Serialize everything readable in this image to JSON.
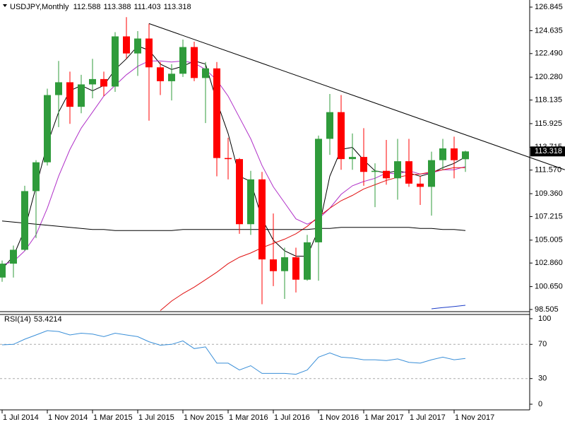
{
  "chart_data": [
    {
      "type": "candlestick",
      "title": "USDJPY,Monthly",
      "categories": [
        "1 Jul 2014",
        null,
        null,
        null,
        "1 Nov 2014",
        null,
        null,
        null,
        "1 Mar 2015",
        null,
        null,
        null,
        "1 Jul 2015",
        null,
        null,
        null,
        "1 Nov 2015",
        null,
        null,
        null,
        "1 Mar 2016",
        null,
        null,
        null,
        "1 Jul 2016",
        null,
        null,
        null,
        "1 Nov 2016",
        null,
        null,
        null,
        "1 Mar 2017",
        null,
        null,
        null,
        "1 Jul 2017",
        null,
        null,
        null,
        "1 Nov 2017",
        null
      ],
      "open": [
        101.5,
        102.8,
        104.1,
        109.6,
        112.3,
        118.6,
        119.8,
        117.5,
        119.6,
        120.1,
        119.4,
        124.1,
        122.5,
        123.9,
        121.2,
        119.9,
        120.6,
        123.1,
        120.2,
        121.1,
        112.7,
        112.6,
        106.5,
        110.7,
        103.2,
        102.1,
        103.4,
        101.3,
        104.8,
        114.5,
        117.0,
        112.6,
        112.8,
        111.4,
        111.5,
        110.8,
        112.4,
        110.3,
        110.0,
        112.5,
        113.6,
        112.588
      ],
      "high": [
        103.1,
        104.5,
        110.1,
        112.5,
        119.2,
        121.8,
        120.8,
        120.5,
        122.0,
        120.8,
        124.5,
        125.9,
        124.6,
        125.3,
        121.7,
        121.5,
        123.8,
        123.6,
        121.7,
        121.7,
        114.6,
        112.7,
        111.5,
        111.4,
        107.5,
        104.3,
        104.3,
        105.5,
        114.8,
        118.7,
        118.6,
        115.0,
        115.5,
        112.2,
        114.4,
        114.5,
        114.5,
        111.0,
        113.3,
        114.5,
        114.7,
        113.388
      ],
      "low": [
        101.1,
        101.5,
        104.0,
        105.2,
        112.0,
        115.6,
        115.9,
        116.9,
        118.3,
        118.5,
        118.9,
        122.0,
        120.4,
        116.2,
        118.6,
        118.1,
        120.3,
        119.9,
        115.98,
        110.99,
        110.7,
        105.6,
        105.5,
        99.0,
        100.7,
        99.5,
        100.1,
        101.2,
        101.2,
        113.0,
        111.6,
        111.6,
        110.1,
        108.1,
        110.2,
        108.8,
        110.0,
        108.3,
        107.3,
        111.6,
        110.8,
        111.403
      ],
      "close": [
        102.8,
        104.1,
        109.6,
        112.3,
        118.6,
        119.8,
        117.5,
        119.6,
        120.1,
        119.4,
        124.1,
        122.5,
        123.9,
        121.2,
        119.9,
        120.6,
        123.1,
        120.2,
        121.1,
        112.7,
        112.6,
        106.5,
        110.7,
        103.2,
        102.1,
        103.4,
        101.3,
        104.8,
        114.5,
        117.0,
        112.6,
        112.8,
        111.4,
        111.5,
        110.8,
        112.4,
        110.3,
        110.0,
        112.5,
        113.6,
        112.5,
        113.318
      ],
      "up_color": "#2f9b3b",
      "down_color": "#ff0000",
      "indicators": [
        {
          "color": "#000000",
          "values": [
            102.3,
            103.5,
            106,
            110,
            114,
            117,
            119,
            119.5,
            119,
            119.5,
            121,
            122,
            123.2,
            122.8,
            121.5,
            121,
            121.3,
            121.8,
            121.5,
            118,
            115,
            111,
            110.5,
            107,
            105,
            104,
            103.5,
            103.5,
            106,
            111,
            113.5,
            113.7,
            112.5,
            111.5,
            111.3,
            111.5,
            111.3,
            111,
            111.3,
            111.8,
            112.2,
            112.8
          ]
        },
        {
          "color": "#b030c8",
          "values": [
            102.7,
            103,
            104,
            105.5,
            108,
            111,
            113.5,
            115.5,
            117,
            118.5,
            119.5,
            120.5,
            121.3,
            121.8,
            121.8,
            121.7,
            121.8,
            121.6,
            121,
            120,
            118.5,
            116.5,
            114.5,
            112,
            110,
            108.5,
            107,
            106.5,
            107,
            108,
            109.3,
            110.1,
            110.5,
            110.8,
            111.3,
            111.2,
            111.5,
            111.2,
            111.3,
            111.6,
            111.6,
            111.9
          ]
        },
        {
          "color": "#e01010",
          "values": [
            null,
            null,
            null,
            null,
            null,
            null,
            null,
            null,
            null,
            null,
            null,
            null,
            null,
            null,
            98.4,
            99.3,
            100,
            100.6,
            101.3,
            102,
            102.8,
            103.4,
            103.8,
            104.3,
            104.7,
            105.1,
            105.6,
            106.3,
            107.2,
            108,
            108.7,
            109.2,
            109.8,
            110.2,
            110.6,
            110.9,
            111.1,
            111.2,
            111.4,
            111.6,
            111.8,
            111.8
          ]
        },
        {
          "color": "#000000",
          "values": [
            106.8,
            106.7,
            106.6,
            106.5,
            106.4,
            106.3,
            106.2,
            106.1,
            106.0,
            106.0,
            105.9,
            105.9,
            105.9,
            105.9,
            105.9,
            105.9,
            106.0,
            106.0,
            106.0,
            106.0,
            106.0,
            106.0,
            106.0,
            106.0,
            106.0,
            106.0,
            106.0,
            106.0,
            106.1,
            106.1,
            106.2,
            106.2,
            106.2,
            106.2,
            106.2,
            106.2,
            106.2,
            106.1,
            106.1,
            106.0,
            106.0,
            105.9
          ]
        },
        {
          "color": "#1c3cc8",
          "values": [
            null,
            null,
            null,
            null,
            null,
            null,
            null,
            null,
            null,
            null,
            null,
            null,
            null,
            null,
            null,
            null,
            null,
            null,
            null,
            null,
            null,
            null,
            null,
            null,
            null,
            null,
            null,
            null,
            null,
            null,
            null,
            null,
            null,
            null,
            null,
            null,
            null,
            null,
            98.57,
            98.68,
            98.78,
            98.9
          ]
        }
      ],
      "trendline": {
        "color": "#000000",
        "x": [
          13,
          49.8
        ],
        "values": [
          125.3,
          111.6
        ]
      },
      "ylim": [
        98.37,
        127.51
      ],
      "yticks": [
        {
          "value": 126.845,
          "label": "126.845"
        },
        {
          "value": 124.635,
          "label": "124.635"
        },
        {
          "value": 122.49,
          "label": "122.490"
        },
        {
          "value": 120.28,
          "label": "120.280"
        },
        {
          "value": 118.135,
          "label": "118.135"
        },
        {
          "value": 115.925,
          "label": "115.925"
        },
        {
          "value": 113.715,
          "label": "113.715"
        },
        {
          "value": 111.57,
          "label": "111.570"
        },
        {
          "value": 109.36,
          "label": "109.360"
        },
        {
          "value": 107.215,
          "label": "107.215"
        },
        {
          "value": 105.005,
          "label": "105.005"
        },
        {
          "value": 102.86,
          "label": "102.860"
        },
        {
          "value": 100.65,
          "label": "100.650"
        },
        {
          "value": 98.505,
          "label": "98.505"
        }
      ]
    },
    {
      "type": "line",
      "title": "RSI(14)",
      "color": "#3a8fd8",
      "values": [
        69.4,
        70,
        76,
        81,
        86,
        85,
        81,
        83,
        82,
        79,
        83,
        81,
        79,
        73,
        69,
        70,
        74,
        65,
        67,
        48,
        48,
        40,
        45,
        36,
        36,
        36,
        35,
        40,
        55,
        60,
        55,
        54,
        52,
        52,
        51,
        53,
        49,
        48,
        52,
        55,
        52,
        53.4214
      ],
      "ylim": [
        -6.6,
        104.1
      ],
      "yticks": [
        100,
        70,
        30,
        0
      ],
      "levels": [
        70,
        30
      ]
    }
  ]
}
